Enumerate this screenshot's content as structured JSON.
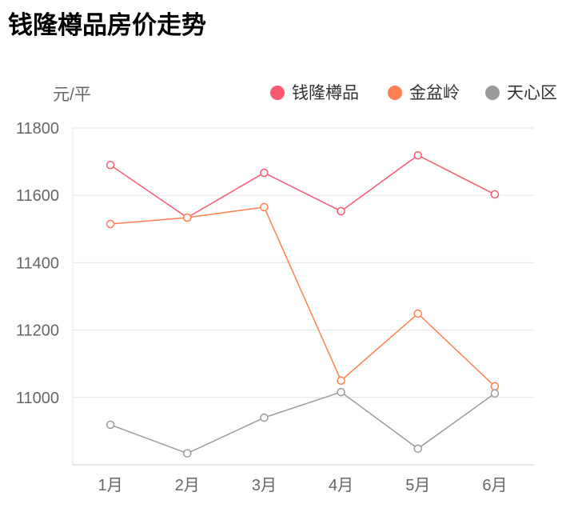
{
  "chart_data": {
    "type": "line",
    "title": "钱隆樽品房价走势",
    "ylabel": "元/平",
    "xlabel": "",
    "categories": [
      "1月",
      "2月",
      "3月",
      "4月",
      "5月",
      "6月"
    ],
    "ylim": [
      10800,
      11800
    ],
    "yticks": [
      11000,
      11200,
      11400,
      11600,
      11800
    ],
    "grid": true,
    "legend": "top-right",
    "series": [
      {
        "name": "钱隆樽品",
        "color": "#f9596e",
        "values": [
          11690,
          11534,
          11667,
          11553,
          11719,
          11603
        ]
      },
      {
        "name": "金盆岭",
        "color": "#fe8050",
        "values": [
          11515,
          11534,
          11565,
          11050,
          11249,
          11033
        ]
      },
      {
        "name": "天心区",
        "color": "#9a9a9a",
        "values": [
          10919,
          10834,
          10940,
          11016,
          10848,
          11012
        ]
      }
    ]
  }
}
